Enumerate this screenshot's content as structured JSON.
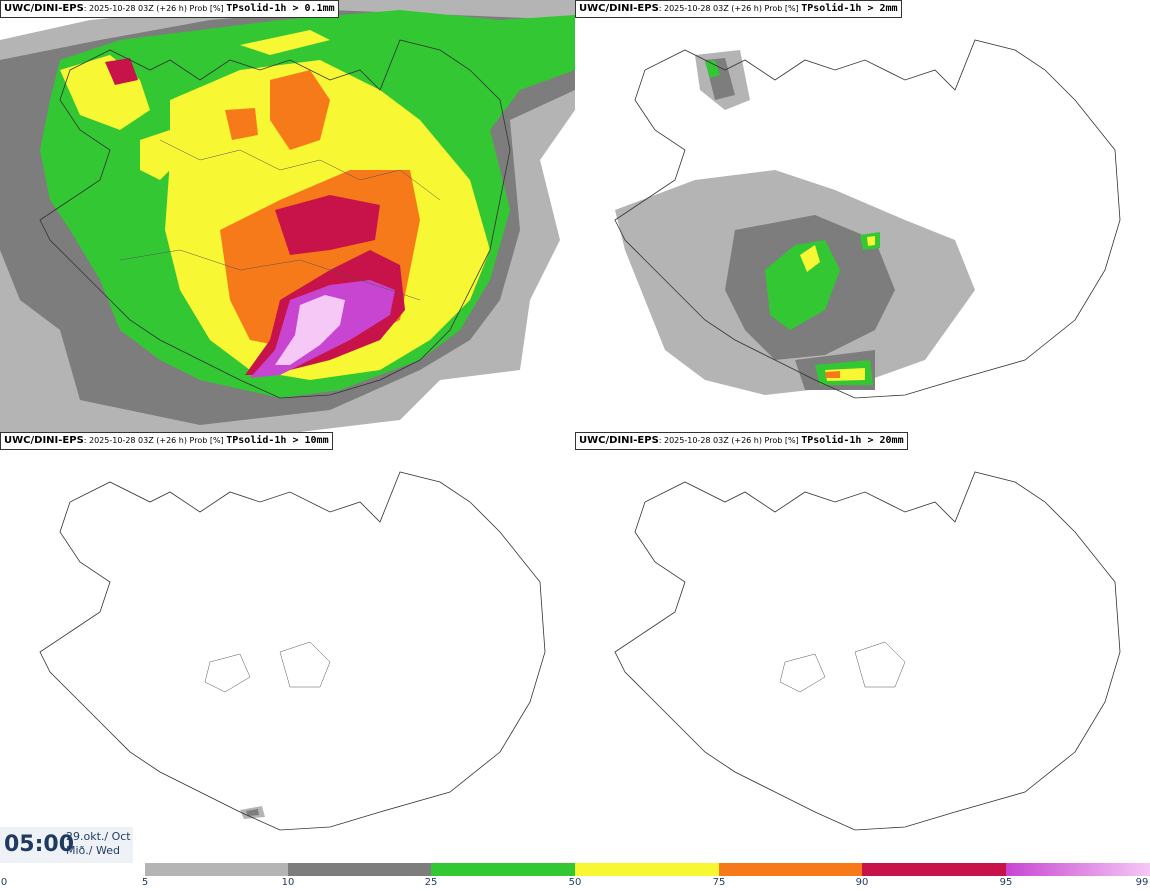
{
  "panels": [
    {
      "model": "UWC/DINI-EPS",
      "meta": ": 2025-10-28 03Z (+26 h) Prob [%] ",
      "param": "TPsolid-1h > 0.1mm"
    },
    {
      "model": "UWC/DINI-EPS",
      "meta": ": 2025-10-28 03Z (+26 h) Prob [%] ",
      "param": "TPsolid-1h > 2mm"
    },
    {
      "model": "UWC/DINI-EPS",
      "meta": ": 2025-10-28 03Z (+26 h) Prob [%] ",
      "param": "TPsolid-1h > 10mm"
    },
    {
      "model": "UWC/DINI-EPS",
      "meta": ": 2025-10-28 03Z (+26 h) Prob [%] ",
      "param": "TPsolid-1h > 20mm"
    }
  ],
  "valid_time": {
    "time": "05:00",
    "date": "29.okt./ Oct",
    "day": "Mið./ Wed"
  },
  "colorbar": {
    "ticks": [
      "0",
      "5",
      "10",
      "25",
      "50",
      "75",
      "90",
      "95",
      "99"
    ],
    "segments": [
      {
        "from": "5",
        "to": "10",
        "color": "#b4b4b4"
      },
      {
        "from": "10",
        "to": "25",
        "color": "#7d7d7d"
      },
      {
        "from": "25",
        "to": "50",
        "color": "#33c733"
      },
      {
        "from": "50",
        "to": "75",
        "color": "#f7f733"
      },
      {
        "from": "75",
        "to": "90",
        "color": "#f77a1a"
      },
      {
        "from": "90",
        "to": "95",
        "color": "#c8124a"
      },
      {
        "from": "95",
        "to": "99",
        "color": "#c845d2",
        "to_color": "#f5c8f5"
      }
    ]
  }
}
